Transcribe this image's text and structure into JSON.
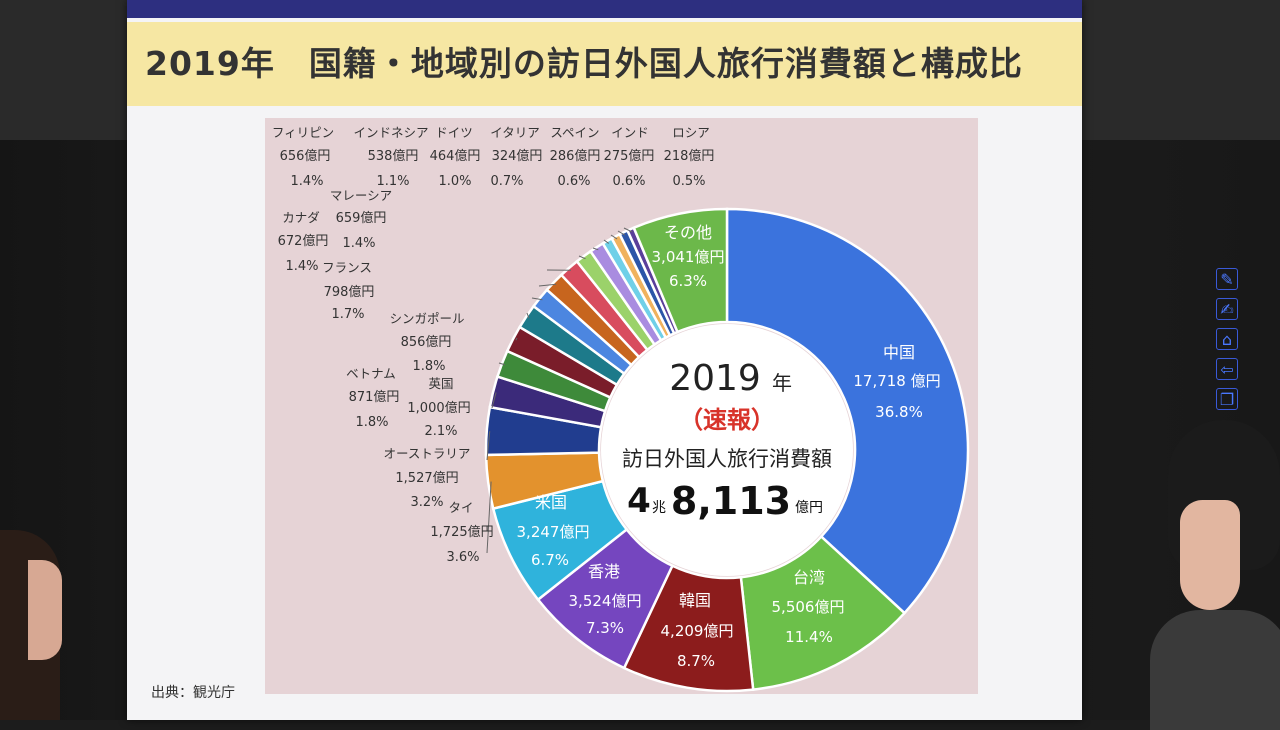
{
  "slide": {
    "title": "2019年　国籍・地域別の訪日外国人旅行消費額と構成比",
    "source": "出典：観光庁"
  },
  "center": {
    "year": "2019",
    "year_unit": "年",
    "status": "（速報）",
    "label": "訪日外国人旅行消費額",
    "total_big": "4",
    "total_unit1": "兆",
    "total_small": "8,113",
    "total_unit2": "億円"
  },
  "chart_data": {
    "type": "pie",
    "title": "2019年　国籍・地域別の訪日外国人旅行消費額と構成比",
    "unit": "億円",
    "series": [
      {
        "name": "中国",
        "value": 17718,
        "value_label": "17,718 億円",
        "share": "36.8%",
        "color": "#3b73dd"
      },
      {
        "name": "台湾",
        "value": 5506,
        "value_label": "5,506億円",
        "share": "11.4%",
        "color": "#6cc04a"
      },
      {
        "name": "韓国",
        "value": 4209,
        "value_label": "4,209億円",
        "share": "8.7%",
        "color": "#8c1c1c"
      },
      {
        "name": "香港",
        "value": 3524,
        "value_label": "3,524億円",
        "share": "7.3%",
        "color": "#7546bf"
      },
      {
        "name": "米国",
        "value": 3247,
        "value_label": "3,247億円",
        "share": "6.7%",
        "color": "#2fb3dc"
      },
      {
        "name": "タイ",
        "value": 1725,
        "value_label": "1,725億円",
        "share": "3.6%",
        "color": "#e3922d"
      },
      {
        "name": "オーストラリア",
        "value": 1527,
        "value_label": "1,527億円",
        "share": "3.2%",
        "color": "#213d8f"
      },
      {
        "name": "英国",
        "value": 1000,
        "value_label": "1,000億円",
        "share": "2.1%",
        "color": "#3b2a7a"
      },
      {
        "name": "ベトナム",
        "value": 871,
        "value_label": "871億円",
        "share": "1.8%",
        "color": "#3e8a3a"
      },
      {
        "name": "シンガポール",
        "value": 856,
        "value_label": "856億円",
        "share": "1.8%",
        "color": "#7a1d2a"
      },
      {
        "name": "フランス",
        "value": 798,
        "value_label": "798億円",
        "share": "1.7%",
        "color": "#1d7a8a"
      },
      {
        "name": "カナダ",
        "value": 672,
        "value_label": "672億円",
        "share": "1.4%",
        "color": "#4c86e0"
      },
      {
        "name": "マレーシア",
        "value": 659,
        "value_label": "659億円",
        "share": "1.4%",
        "color": "#c7651e"
      },
      {
        "name": "フィリピン",
        "value": 656,
        "value_label": "656億円",
        "share": "1.4%",
        "color": "#d84c5e"
      },
      {
        "name": "インドネシア",
        "value": 538,
        "value_label": "538億円",
        "share": "1.1%",
        "color": "#9bd26a"
      },
      {
        "name": "ドイツ",
        "value": 464,
        "value_label": "464億円",
        "share": "1.0%",
        "color": "#a98ce0"
      },
      {
        "name": "イタリア",
        "value": 324,
        "value_label": "324億円",
        "share": "0.7%",
        "color": "#6fd0e8"
      },
      {
        "name": "スペイン",
        "value": 286,
        "value_label": "286億円",
        "share": "0.6%",
        "color": "#f0b25e"
      },
      {
        "name": "インド",
        "value": 275,
        "value_label": "275億円",
        "share": "0.6%",
        "color": "#2c55a8"
      },
      {
        "name": "ロシア",
        "value": 218,
        "value_label": "218億円",
        "share": "0.5%",
        "color": "#5a3f9a"
      },
      {
        "name": "その他",
        "value": 3041,
        "value_label": "3,041億円",
        "share": "6.3%",
        "color": "#6cb84a"
      }
    ]
  },
  "ui": {
    "icons": [
      "pen-icon",
      "edit-icon",
      "home-icon",
      "back-icon",
      "window-icon"
    ]
  }
}
